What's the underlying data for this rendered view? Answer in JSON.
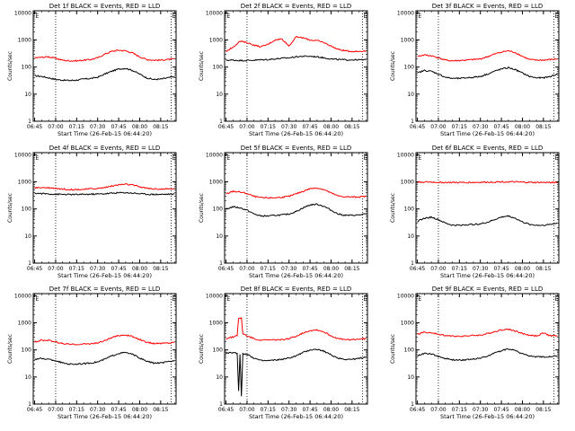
{
  "figure": {
    "x_ticks": [
      "06:45",
      "07:00",
      "07:15",
      "07:30",
      "07:45",
      "08:00",
      "08:15"
    ],
    "y_ticks": [
      "1",
      "10",
      "100",
      "1000",
      "10000"
    ],
    "xlabel": "Start Time (26-Feb-15 06:44:20)",
    "ylabel": "Counts/sec",
    "event_marker": "E",
    "colors": {
      "events": "#000000",
      "lld": "#ff0000",
      "frame": "#000000"
    }
  },
  "chart_data": [
    {
      "type": "line",
      "title": "Det 1f BLACK = Events, RED = LLD",
      "xlabel": "Start Time (26-Feb-15 06:44:20)",
      "ylabel": "Counts/sec",
      "y_scale": "log",
      "ylim": [
        1,
        12000
      ],
      "x_range_min": [
        -1,
        101
      ],
      "dotted_lines_min": [
        15,
        97.5
      ],
      "event_markers_min": [
        0,
        97.5
      ],
      "series": [
        {
          "name": "Events",
          "x": [
            0,
            5,
            10,
            15,
            20,
            25,
            30,
            35,
            40,
            45,
            50,
            55,
            60,
            65,
            70,
            75,
            80,
            85,
            90,
            95,
            100
          ],
          "y": [
            48,
            45,
            40,
            35,
            33,
            32,
            33,
            36,
            38,
            42,
            55,
            70,
            85,
            90,
            75,
            55,
            40,
            35,
            36,
            40,
            45
          ]
        },
        {
          "name": "LLD",
          "x": [
            0,
            5,
            10,
            15,
            20,
            25,
            30,
            35,
            40,
            45,
            50,
            55,
            60,
            65,
            70,
            75,
            80,
            85,
            90,
            95,
            100
          ],
          "y": [
            220,
            230,
            240,
            210,
            180,
            170,
            170,
            180,
            190,
            220,
            300,
            380,
            420,
            400,
            330,
            240,
            190,
            180,
            180,
            190,
            200
          ]
        }
      ]
    },
    {
      "type": "line",
      "title": "Det 2f BLACK = Events, RED = LLD",
      "xlabel": "Start Time (26-Feb-15 06:44:20)",
      "ylabel": "Counts/sec",
      "y_scale": "log",
      "ylim": [
        1,
        12000
      ],
      "x_range_min": [
        -1,
        101
      ],
      "dotted_lines_min": [
        15,
        97.5
      ],
      "event_markers_min": [
        0,
        97.5
      ],
      "series": [
        {
          "name": "Events",
          "x": [
            0,
            5,
            10,
            15,
            20,
            25,
            30,
            35,
            40,
            45,
            50,
            55,
            60,
            65,
            70,
            75,
            80,
            85,
            90,
            95,
            100
          ],
          "y": [
            180,
            180,
            175,
            175,
            180,
            185,
            190,
            200,
            210,
            220,
            240,
            250,
            250,
            240,
            220,
            200,
            190,
            185,
            185,
            185,
            185
          ]
        },
        {
          "name": "LLD",
          "x": [
            0,
            5,
            10,
            15,
            20,
            25,
            30,
            35,
            40,
            45,
            50,
            55,
            60,
            65,
            70,
            75,
            80,
            85,
            90,
            95,
            100
          ],
          "y": [
            380,
            550,
            900,
            800,
            650,
            560,
            700,
            1000,
            1100,
            600,
            1300,
            1200,
            1000,
            950,
            800,
            600,
            450,
            400,
            380,
            380,
            400
          ]
        }
      ]
    },
    {
      "type": "line",
      "title": "Det 3f BLACK = Events, RED = LLD",
      "xlabel": "Start Time (26-Feb-15 06:44:20)",
      "ylabel": "Counts/sec",
      "y_scale": "log",
      "ylim": [
        1,
        12000
      ],
      "x_range_min": [
        -1,
        101
      ],
      "dotted_lines_min": [
        15,
        97.5
      ],
      "event_markers_min": [
        0,
        97.5
      ],
      "series": [
        {
          "name": "Events",
          "x": [
            0,
            5,
            10,
            15,
            20,
            25,
            30,
            35,
            40,
            45,
            50,
            55,
            60,
            65,
            70,
            75,
            80,
            85,
            90,
            95,
            100
          ],
          "y": [
            60,
            75,
            70,
            55,
            42,
            38,
            38,
            40,
            42,
            45,
            55,
            70,
            85,
            95,
            80,
            60,
            45,
            40,
            40,
            45,
            55
          ]
        },
        {
          "name": "LLD",
          "x": [
            0,
            5,
            10,
            15,
            20,
            25,
            30,
            35,
            40,
            45,
            50,
            55,
            60,
            65,
            70,
            75,
            80,
            85,
            90,
            95,
            100
          ],
          "y": [
            250,
            280,
            260,
            220,
            180,
            170,
            175,
            180,
            190,
            200,
            240,
            300,
            360,
            400,
            340,
            250,
            190,
            180,
            180,
            190,
            200
          ]
        }
      ]
    },
    {
      "type": "line",
      "title": "Det 4f BLACK = Events, RED = LLD",
      "xlabel": "Start Time (26-Feb-15 06:44:20)",
      "ylabel": "Counts/sec",
      "y_scale": "log",
      "ylim": [
        1,
        12000
      ],
      "x_range_min": [
        -1,
        101
      ],
      "dotted_lines_min": [
        15,
        97.5
      ],
      "event_markers_min": [
        0,
        97.5
      ],
      "series": [
        {
          "name": "Events",
          "x": [
            0,
            5,
            10,
            15,
            20,
            25,
            30,
            35,
            40,
            45,
            50,
            55,
            60,
            65,
            70,
            75,
            80,
            85,
            90,
            95,
            100
          ],
          "y": [
            380,
            370,
            360,
            350,
            345,
            340,
            340,
            345,
            350,
            355,
            365,
            380,
            395,
            400,
            385,
            365,
            350,
            345,
            345,
            350,
            355
          ]
        },
        {
          "name": "LLD",
          "x": [
            0,
            5,
            10,
            15,
            20,
            25,
            30,
            35,
            40,
            45,
            50,
            55,
            60,
            65,
            70,
            75,
            80,
            85,
            90,
            95,
            100
          ],
          "y": [
            600,
            620,
            610,
            580,
            540,
            520,
            520,
            530,
            550,
            570,
            620,
            700,
            780,
            820,
            760,
            660,
            580,
            550,
            540,
            545,
            560
          ]
        }
      ]
    },
    {
      "type": "line",
      "title": "Det 5f BLACK = Events, RED = LLD",
      "xlabel": "Start Time (26-Feb-15 06:44:20)",
      "ylabel": "Counts/sec",
      "y_scale": "log",
      "ylim": [
        1,
        12000
      ],
      "x_range_min": [
        -1,
        101
      ],
      "dotted_lines_min": [
        15,
        97.5
      ],
      "event_markers_min": [
        0,
        97.5
      ],
      "series": [
        {
          "name": "Events",
          "x": [
            0,
            5,
            10,
            15,
            20,
            25,
            30,
            35,
            40,
            45,
            50,
            55,
            60,
            65,
            70,
            75,
            80,
            85,
            90,
            95,
            100
          ],
          "y": [
            100,
            120,
            110,
            90,
            65,
            55,
            55,
            58,
            60,
            65,
            80,
            110,
            140,
            150,
            125,
            90,
            65,
            58,
            58,
            60,
            65
          ]
        },
        {
          "name": "LLD",
          "x": [
            0,
            5,
            10,
            15,
            20,
            25,
            30,
            35,
            40,
            45,
            50,
            55,
            60,
            65,
            70,
            75,
            80,
            85,
            90,
            95,
            100
          ],
          "y": [
            350,
            450,
            420,
            370,
            290,
            260,
            255,
            260,
            270,
            290,
            360,
            450,
            560,
            600,
            520,
            390,
            300,
            280,
            275,
            280,
            290
          ]
        }
      ]
    },
    {
      "type": "line",
      "title": "Det 6f BLACK = Events, RED = LLD",
      "xlabel": "Start Time (26-Feb-15 06:44:20)",
      "ylabel": "Counts/sec",
      "y_scale": "log",
      "ylim": [
        1,
        12000
      ],
      "x_range_min": [
        -1,
        101
      ],
      "dotted_lines_min": [
        15,
        97.5
      ],
      "event_markers_min": [
        0,
        97.5
      ],
      "series": [
        {
          "name": "Events",
          "x": [
            0,
            5,
            10,
            15,
            20,
            25,
            30,
            35,
            40,
            45,
            50,
            55,
            60,
            65,
            70,
            75,
            80,
            85,
            90,
            95,
            100
          ],
          "y": [
            35,
            45,
            50,
            40,
            30,
            25,
            25,
            26,
            27,
            28,
            32,
            40,
            50,
            55,
            45,
            33,
            27,
            25,
            25,
            27,
            30
          ]
        },
        {
          "name": "LLD",
          "x": [
            0,
            5,
            10,
            15,
            20,
            25,
            30,
            35,
            40,
            45,
            50,
            55,
            60,
            65,
            70,
            75,
            80,
            85,
            90,
            95,
            100
          ],
          "y": [
            980,
            990,
            980,
            960,
            950,
            945,
            945,
            950,
            955,
            960,
            975,
            990,
            1000,
            1000,
            990,
            970,
            955,
            950,
            950,
            955,
            960
          ]
        }
      ]
    },
    {
      "type": "line",
      "title": "Det 7f BLACK = Events, RED = LLD",
      "xlabel": "Start Time (26-Feb-15 06:44:20)",
      "ylabel": "Counts/sec",
      "y_scale": "log",
      "ylim": [
        1,
        12000
      ],
      "x_range_min": [
        -1,
        101
      ],
      "dotted_lines_min": [
        15,
        97.5
      ],
      "event_markers_min": [
        0,
        97.5
      ],
      "series": [
        {
          "name": "Events",
          "x": [
            0,
            5,
            10,
            15,
            20,
            25,
            30,
            35,
            40,
            45,
            50,
            55,
            60,
            65,
            70,
            75,
            80,
            85,
            90,
            95,
            100
          ],
          "y": [
            45,
            48,
            45,
            40,
            33,
            30,
            30,
            31,
            33,
            36,
            45,
            60,
            75,
            80,
            68,
            50,
            38,
            33,
            33,
            36,
            40
          ]
        },
        {
          "name": "LLD",
          "x": [
            0,
            5,
            10,
            15,
            20,
            25,
            30,
            35,
            40,
            45,
            50,
            55,
            60,
            65,
            70,
            75,
            80,
            85,
            90,
            95,
            100
          ],
          "y": [
            200,
            230,
            220,
            200,
            170,
            160,
            160,
            165,
            170,
            180,
            220,
            280,
            340,
            360,
            310,
            240,
            190,
            175,
            175,
            180,
            190
          ]
        }
      ]
    },
    {
      "type": "line",
      "title": "Det 8f BLACK = Events, RED = LLD",
      "xlabel": "Start Time (26-Feb-15 06:44:20)",
      "ylabel": "Counts/sec",
      "y_scale": "log",
      "ylim": [
        1,
        12000
      ],
      "x_range_min": [
        -1,
        101
      ],
      "dotted_lines_min": [
        15,
        97.5
      ],
      "event_markers_min": [
        0,
        97.5
      ],
      "series": [
        {
          "name": "Events",
          "x": [
            0,
            5,
            8,
            9,
            10,
            11,
            12,
            15,
            20,
            25,
            30,
            35,
            40,
            45,
            50,
            55,
            60,
            65,
            70,
            75,
            80,
            85,
            90,
            95,
            100
          ],
          "y": [
            75,
            80,
            75,
            3,
            70,
            2,
            70,
            70,
            50,
            40,
            40,
            42,
            45,
            50,
            60,
            80,
            100,
            105,
            90,
            65,
            50,
            45,
            45,
            48,
            55
          ]
        },
        {
          "name": "LLD",
          "x": [
            0,
            5,
            8,
            9,
            10,
            11,
            12,
            15,
            20,
            25,
            30,
            35,
            40,
            45,
            50,
            55,
            60,
            65,
            70,
            75,
            80,
            85,
            90,
            95,
            100
          ],
          "y": [
            260,
            300,
            350,
            1500,
            1400,
            1500,
            400,
            330,
            260,
            230,
            230,
            235,
            240,
            260,
            320,
            420,
            520,
            550,
            460,
            330,
            260,
            240,
            240,
            250,
            260
          ]
        }
      ]
    },
    {
      "type": "line",
      "title": "Det 9f BLACK = Events, RED = LLD",
      "xlabel": "Start Time (26-Feb-15 06:44:20)",
      "ylabel": "Counts/sec",
      "y_scale": "log",
      "ylim": [
        1,
        12000
      ],
      "x_range_min": [
        -1,
        101
      ],
      "dotted_lines_min": [
        15,
        97.5
      ],
      "event_markers_min": [
        0,
        97.5
      ],
      "series": [
        {
          "name": "Events",
          "x": [
            0,
            5,
            10,
            15,
            20,
            25,
            30,
            35,
            40,
            45,
            50,
            55,
            60,
            65,
            70,
            75,
            80,
            85,
            90,
            95,
            100
          ],
          "y": [
            60,
            75,
            70,
            58,
            48,
            43,
            42,
            44,
            46,
            50,
            60,
            75,
            95,
            110,
            95,
            72,
            60,
            55,
            55,
            58,
            60
          ]
        },
        {
          "name": "LLD",
          "x": [
            0,
            5,
            10,
            15,
            20,
            25,
            30,
            35,
            40,
            45,
            50,
            55,
            60,
            65,
            70,
            75,
            80,
            85,
            90,
            95,
            100
          ],
          "y": [
            380,
            450,
            420,
            380,
            340,
            320,
            320,
            330,
            340,
            350,
            400,
            470,
            550,
            580,
            500,
            400,
            350,
            330,
            420,
            330,
            340
          ]
        }
      ]
    }
  ]
}
